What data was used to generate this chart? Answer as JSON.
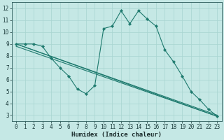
{
  "xlabel": "Humidex (Indice chaleur)",
  "bg_color": "#c5e8e5",
  "line_color": "#1e7a6e",
  "grid_color": "#a8d5d0",
  "xlim": [
    -0.5,
    23.5
  ],
  "ylim": [
    2.5,
    12.5
  ],
  "xticks": [
    0,
    1,
    2,
    3,
    4,
    5,
    6,
    7,
    8,
    9,
    10,
    11,
    12,
    13,
    14,
    15,
    16,
    17,
    18,
    19,
    20,
    21,
    22,
    23
  ],
  "yticks": [
    3,
    4,
    5,
    6,
    7,
    8,
    9,
    10,
    11,
    12
  ],
  "series": [
    {
      "x": [
        0,
        1,
        2,
        3,
        4,
        5,
        6,
        7,
        8,
        9,
        10,
        11,
        12,
        13,
        14,
        15,
        16,
        17,
        18,
        19,
        20,
        21,
        22,
        23
      ],
      "y": [
        9.0,
        9.0,
        9.0,
        8.8,
        7.8,
        7.0,
        6.3,
        5.2,
        4.8,
        5.5,
        10.3,
        10.5,
        11.8,
        10.7,
        11.8,
        11.1,
        10.5,
        8.5,
        7.5,
        6.3,
        5.0,
        4.3,
        3.5,
        2.9
      ],
      "marker": true
    },
    {
      "x": [
        0,
        23
      ],
      "y": [
        9.0,
        3.0
      ],
      "marker": false
    },
    {
      "x": [
        0,
        23
      ],
      "y": [
        9.0,
        2.9
      ],
      "marker": false
    },
    {
      "x": [
        0,
        23
      ],
      "y": [
        8.8,
        2.9
      ],
      "marker": false
    }
  ]
}
